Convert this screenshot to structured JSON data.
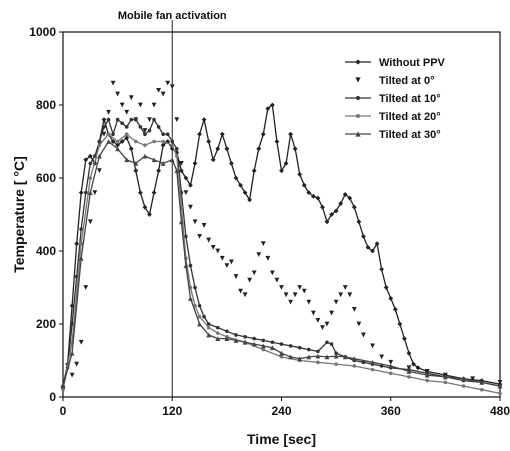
{
  "chart_data": {
    "type": "line",
    "title": "",
    "xlabel": "Time [sec]",
    "ylabel": "Temperature [    °C]",
    "xlim": [
      0,
      480
    ],
    "ylim": [
      0,
      1000
    ],
    "xticks": [
      0,
      120,
      240,
      360,
      480
    ],
    "yticks": [
      0,
      200,
      400,
      600,
      800,
      1000
    ],
    "grid": false,
    "legend_position": "top-right",
    "annotations": [
      {
        "text": "Mobile fan activation",
        "x": 120
      }
    ],
    "series": [
      {
        "name": "Without PPV",
        "marker": "diamond",
        "color": "#222222",
        "points": [
          [
            0,
            30
          ],
          [
            5,
            90
          ],
          [
            10,
            250
          ],
          [
            15,
            420
          ],
          [
            20,
            560
          ],
          [
            25,
            650
          ],
          [
            30,
            660
          ],
          [
            35,
            640
          ],
          [
            40,
            700
          ],
          [
            45,
            760
          ],
          [
            50,
            720
          ],
          [
            55,
            700
          ],
          [
            60,
            690
          ],
          [
            65,
            700
          ],
          [
            70,
            710
          ],
          [
            75,
            680
          ],
          [
            80,
            620
          ],
          [
            85,
            560
          ],
          [
            90,
            520
          ],
          [
            95,
            500
          ],
          [
            100,
            560
          ],
          [
            105,
            620
          ],
          [
            110,
            690
          ],
          [
            115,
            700
          ],
          [
            120,
            680
          ],
          [
            125,
            670
          ],
          [
            130,
            620
          ],
          [
            135,
            600
          ],
          [
            140,
            580
          ],
          [
            145,
            640
          ],
          [
            150,
            720
          ],
          [
            155,
            760
          ],
          [
            160,
            700
          ],
          [
            165,
            650
          ],
          [
            170,
            680
          ],
          [
            175,
            720
          ],
          [
            180,
            680
          ],
          [
            185,
            640
          ],
          [
            190,
            600
          ],
          [
            195,
            580
          ],
          [
            200,
            560
          ],
          [
            205,
            540
          ],
          [
            210,
            620
          ],
          [
            215,
            680
          ],
          [
            220,
            720
          ],
          [
            225,
            790
          ],
          [
            230,
            800
          ],
          [
            235,
            700
          ],
          [
            240,
            620
          ],
          [
            245,
            640
          ],
          [
            250,
            720
          ],
          [
            255,
            680
          ],
          [
            260,
            610
          ],
          [
            265,
            580
          ],
          [
            270,
            560
          ],
          [
            275,
            550
          ],
          [
            280,
            545
          ],
          [
            285,
            520
          ],
          [
            290,
            480
          ],
          [
            295,
            500
          ],
          [
            300,
            510
          ],
          [
            305,
            530
          ],
          [
            310,
            555
          ],
          [
            315,
            545
          ],
          [
            320,
            520
          ],
          [
            325,
            480
          ],
          [
            330,
            440
          ],
          [
            335,
            410
          ],
          [
            340,
            400
          ],
          [
            345,
            420
          ],
          [
            350,
            350
          ],
          [
            355,
            300
          ],
          [
            360,
            270
          ],
          [
            365,
            240
          ],
          [
            370,
            200
          ],
          [
            375,
            160
          ],
          [
            380,
            120
          ],
          [
            385,
            90
          ],
          [
            390,
            80
          ],
          [
            400,
            70
          ],
          [
            420,
            60
          ],
          [
            440,
            50
          ],
          [
            460,
            45
          ],
          [
            480,
            35
          ]
        ]
      },
      {
        "name": "Tilted at  0°",
        "marker": "triangle-down",
        "color": "#222222",
        "points": [
          [
            0,
            20
          ],
          [
            10,
            60
          ],
          [
            15,
            90
          ],
          [
            20,
            150
          ],
          [
            25,
            300
          ],
          [
            30,
            480
          ],
          [
            35,
            560
          ],
          [
            40,
            620
          ],
          [
            45,
            720
          ],
          [
            50,
            780
          ],
          [
            55,
            860
          ],
          [
            60,
            830
          ],
          [
            65,
            800
          ],
          [
            70,
            780
          ],
          [
            75,
            820
          ],
          [
            80,
            760
          ],
          [
            85,
            800
          ],
          [
            90,
            730
          ],
          [
            95,
            760
          ],
          [
            100,
            800
          ],
          [
            105,
            840
          ],
          [
            110,
            830
          ],
          [
            115,
            860
          ],
          [
            120,
            850
          ],
          [
            125,
            760
          ],
          [
            130,
            640
          ],
          [
            135,
            560
          ],
          [
            140,
            520
          ],
          [
            145,
            480
          ],
          [
            150,
            440
          ],
          [
            155,
            470
          ],
          [
            160,
            430
          ],
          [
            165,
            410
          ],
          [
            170,
            400
          ],
          [
            175,
            380
          ],
          [
            180,
            360
          ],
          [
            185,
            370
          ],
          [
            190,
            330
          ],
          [
            195,
            290
          ],
          [
            200,
            280
          ],
          [
            205,
            320
          ],
          [
            210,
            340
          ],
          [
            215,
            390
          ],
          [
            220,
            420
          ],
          [
            225,
            380
          ],
          [
            230,
            340
          ],
          [
            235,
            320
          ],
          [
            240,
            300
          ],
          [
            245,
            280
          ],
          [
            250,
            260
          ],
          [
            255,
            280
          ],
          [
            260,
            300
          ],
          [
            265,
            290
          ],
          [
            270,
            260
          ],
          [
            275,
            230
          ],
          [
            280,
            210
          ],
          [
            285,
            190
          ],
          [
            290,
            200
          ],
          [
            295,
            230
          ],
          [
            300,
            260
          ],
          [
            305,
            280
          ],
          [
            310,
            300
          ],
          [
            315,
            280
          ],
          [
            320,
            240
          ],
          [
            325,
            200
          ],
          [
            330,
            170
          ],
          [
            340,
            140
          ],
          [
            350,
            110
          ],
          [
            360,
            95
          ],
          [
            380,
            80
          ],
          [
            400,
            70
          ],
          [
            420,
            60
          ],
          [
            450,
            50
          ],
          [
            480,
            40
          ]
        ]
      },
      {
        "name": "Tilted at 10°",
        "marker": "circle",
        "color": "#333333",
        "points": [
          [
            0,
            25
          ],
          [
            5,
            80
          ],
          [
            10,
            200
          ],
          [
            15,
            330
          ],
          [
            20,
            460
          ],
          [
            25,
            560
          ],
          [
            30,
            640
          ],
          [
            35,
            660
          ],
          [
            40,
            700
          ],
          [
            45,
            740
          ],
          [
            50,
            760
          ],
          [
            55,
            720
          ],
          [
            60,
            760
          ],
          [
            65,
            750
          ],
          [
            70,
            740
          ],
          [
            75,
            760
          ],
          [
            80,
            760
          ],
          [
            85,
            740
          ],
          [
            90,
            720
          ],
          [
            95,
            730
          ],
          [
            100,
            760
          ],
          [
            105,
            740
          ],
          [
            110,
            720
          ],
          [
            115,
            720
          ],
          [
            120,
            700
          ],
          [
            125,
            680
          ],
          [
            130,
            560
          ],
          [
            135,
            440
          ],
          [
            140,
            360
          ],
          [
            145,
            300
          ],
          [
            150,
            250
          ],
          [
            155,
            220
          ],
          [
            160,
            200
          ],
          [
            170,
            190
          ],
          [
            180,
            180
          ],
          [
            190,
            170
          ],
          [
            200,
            165
          ],
          [
            210,
            160
          ],
          [
            220,
            155
          ],
          [
            230,
            150
          ],
          [
            240,
            145
          ],
          [
            250,
            140
          ],
          [
            260,
            135
          ],
          [
            270,
            130
          ],
          [
            280,
            125
          ],
          [
            290,
            150
          ],
          [
            295,
            145
          ],
          [
            300,
            120
          ],
          [
            310,
            110
          ],
          [
            320,
            100
          ],
          [
            330,
            95
          ],
          [
            340,
            90
          ],
          [
            350,
            85
          ],
          [
            360,
            80
          ],
          [
            380,
            75
          ],
          [
            400,
            65
          ],
          [
            420,
            55
          ],
          [
            440,
            45
          ],
          [
            460,
            40
          ],
          [
            480,
            30
          ]
        ]
      },
      {
        "name": "Tilted at 20°",
        "marker": "circle",
        "color": "#777777",
        "points": [
          [
            0,
            20
          ],
          [
            10,
            150
          ],
          [
            20,
            420
          ],
          [
            30,
            600
          ],
          [
            40,
            690
          ],
          [
            50,
            720
          ],
          [
            60,
            700
          ],
          [
            70,
            720
          ],
          [
            80,
            700
          ],
          [
            90,
            690
          ],
          [
            100,
            700
          ],
          [
            110,
            700
          ],
          [
            120,
            690
          ],
          [
            125,
            660
          ],
          [
            130,
            520
          ],
          [
            135,
            380
          ],
          [
            140,
            300
          ],
          [
            145,
            250
          ],
          [
            150,
            220
          ],
          [
            160,
            190
          ],
          [
            170,
            175
          ],
          [
            180,
            165
          ],
          [
            200,
            150
          ],
          [
            220,
            130
          ],
          [
            240,
            110
          ],
          [
            260,
            100
          ],
          [
            280,
            95
          ],
          [
            300,
            90
          ],
          [
            320,
            85
          ],
          [
            340,
            75
          ],
          [
            360,
            65
          ],
          [
            380,
            55
          ],
          [
            400,
            45
          ],
          [
            420,
            40
          ],
          [
            440,
            30
          ],
          [
            460,
            20
          ],
          [
            480,
            10
          ]
        ]
      },
      {
        "name": "Tilted at 30°",
        "marker": "triangle-up",
        "color": "#444444",
        "points": [
          [
            0,
            30
          ],
          [
            10,
            120
          ],
          [
            20,
            380
          ],
          [
            30,
            560
          ],
          [
            40,
            660
          ],
          [
            50,
            700
          ],
          [
            60,
            680
          ],
          [
            70,
            650
          ],
          [
            80,
            640
          ],
          [
            90,
            660
          ],
          [
            100,
            650
          ],
          [
            110,
            640
          ],
          [
            120,
            650
          ],
          [
            125,
            620
          ],
          [
            130,
            480
          ],
          [
            135,
            360
          ],
          [
            140,
            270
          ],
          [
            150,
            200
          ],
          [
            160,
            170
          ],
          [
            170,
            160
          ],
          [
            180,
            160
          ],
          [
            190,
            155
          ],
          [
            200,
            150
          ],
          [
            210,
            145
          ],
          [
            220,
            140
          ],
          [
            230,
            135
          ],
          [
            240,
            120
          ],
          [
            250,
            110
          ],
          [
            260,
            105
          ],
          [
            270,
            110
          ],
          [
            280,
            112
          ],
          [
            290,
            110
          ],
          [
            300,
            112
          ],
          [
            310,
            110
          ],
          [
            320,
            105
          ],
          [
            340,
            95
          ],
          [
            360,
            85
          ],
          [
            380,
            70
          ],
          [
            400,
            60
          ],
          [
            420,
            55
          ],
          [
            440,
            50
          ],
          [
            460,
            40
          ],
          [
            480,
            30
          ]
        ]
      }
    ]
  }
}
